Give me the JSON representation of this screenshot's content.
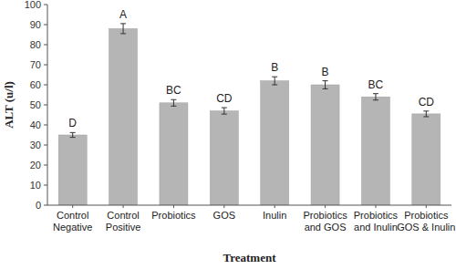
{
  "chart_data": {
    "type": "bar",
    "x_label": "Treatment",
    "y_label": "ALT (u/l)",
    "categories": [
      "Control Negative",
      "Control Positive",
      "Probiotics",
      "GOS",
      "Inulin",
      "Probiotics and GOS",
      "Probiotics and Inulin",
      "Probiotics GOS & Inulin"
    ],
    "values": [
      35,
      88,
      51,
      47,
      62,
      60,
      54,
      45.5
    ],
    "errors": [
      1.2,
      2.5,
      1.6,
      1.6,
      2,
      2,
      1.6,
      1.4
    ],
    "annotations": [
      "D",
      "A",
      "BC",
      "CD",
      "B",
      "B",
      "BC",
      "CD"
    ],
    "color": "#b5b5b5",
    "ylim": [
      0,
      100
    ],
    "yticks": [
      0,
      10,
      20,
      30,
      40,
      50,
      60,
      70,
      80,
      90,
      100
    ],
    "grid": false
  }
}
